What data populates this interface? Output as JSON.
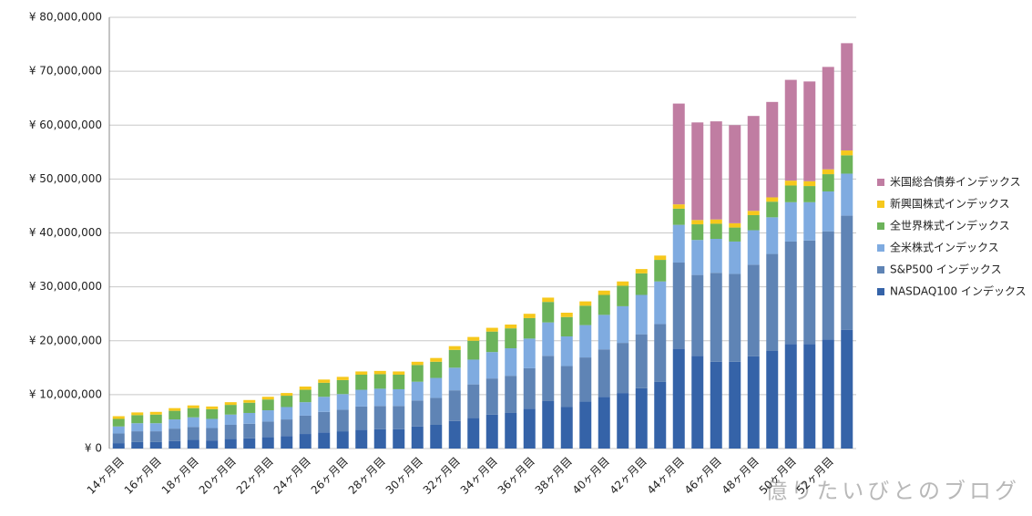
{
  "chart_data": {
    "type": "stacked_bar",
    "categories": [
      "14ヶ月目",
      null,
      "16ヶ月目",
      null,
      "18ヶ月目",
      null,
      "20ヶ月目",
      null,
      "22ヶ月目",
      null,
      "24ヶ月目",
      null,
      "26ヶ月目",
      null,
      "28ヶ月目",
      null,
      "30ヶ月目",
      null,
      "32ヶ月目",
      null,
      "34ヶ月目",
      null,
      "36ヶ月目",
      null,
      "38ヶ月目",
      null,
      "40ヶ月目",
      null,
      "42ヶ月目",
      null,
      "44ヶ月目",
      null,
      "46ヶ月目",
      null,
      "48ヶ月目",
      null,
      "50ヶ月目",
      null,
      "52ヶ月目",
      null
    ],
    "series": [
      {
        "name": "NASDAQ100 インデックス",
        "color": "#3563a8",
        "values": [
          1000000,
          1200000,
          1200000,
          1400000,
          1600000,
          1500000,
          1800000,
          1900000,
          2100000,
          2300000,
          2700000,
          3000000,
          3200000,
          3500000,
          3600000,
          3600000,
          4100000,
          4400000,
          5100000,
          5700000,
          6300000,
          6600000,
          7400000,
          8800000,
          7700000,
          8700000,
          9600000,
          10300000,
          11200000,
          12400000,
          18500000,
          17200000,
          16100000,
          16100000,
          17100000,
          18100000,
          19400000,
          19400000,
          20200000,
          22000000
        ]
      },
      {
        "name": "S&P500 インデックス",
        "color": "#5f84b5",
        "values": [
          1800000,
          2000000,
          2000000,
          2300000,
          2400000,
          2300000,
          2600000,
          2700000,
          2900000,
          3100000,
          3400000,
          3800000,
          4000000,
          4300000,
          4300000,
          4300000,
          4800000,
          5000000,
          5700000,
          6200000,
          6700000,
          6900000,
          7500000,
          8400000,
          7600000,
          8200000,
          8800000,
          9300000,
          10000000,
          10700000,
          16000000,
          15000000,
          16500000,
          16300000,
          17000000,
          18000000,
          19000000,
          19200000,
          20100000,
          21200000
        ]
      },
      {
        "name": "全米株式インデックス",
        "color": "#7fabe0",
        "values": [
          1300000,
          1500000,
          1500000,
          1700000,
          1800000,
          1700000,
          1900000,
          2000000,
          2100000,
          2300000,
          2500000,
          2800000,
          2900000,
          3100000,
          3200000,
          3100000,
          3500000,
          3700000,
          4200000,
          4600000,
          4900000,
          5100000,
          5500000,
          6200000,
          5500000,
          6000000,
          6400000,
          6800000,
          7300000,
          7900000,
          7000000,
          6500000,
          6300000,
          6000000,
          6400000,
          6800000,
          7300000,
          7100000,
          7400000,
          7800000
        ]
      },
      {
        "name": "全世界株式インデックス",
        "color": "#6cb35a",
        "values": [
          1400000,
          1500000,
          1600000,
          1600000,
          1700000,
          1800000,
          1800000,
          1900000,
          2000000,
          2100000,
          2300000,
          2600000,
          2600000,
          2800000,
          2700000,
          2700000,
          3100000,
          3000000,
          3300000,
          3500000,
          3800000,
          3700000,
          3800000,
          3800000,
          3600000,
          3600000,
          3700000,
          3800000,
          4000000,
          4000000,
          3000000,
          2900000,
          2800000,
          2600000,
          2800000,
          2900000,
          3100000,
          3000000,
          3200000,
          3400000
        ]
      },
      {
        "name": "新興国株式インデックス",
        "color": "#f6c81c",
        "values": [
          500000,
          500000,
          500000,
          500000,
          500000,
          500000,
          500000,
          500000,
          500000,
          500000,
          600000,
          600000,
          600000,
          600000,
          600000,
          600000,
          600000,
          700000,
          700000,
          700000,
          700000,
          700000,
          800000,
          800000,
          800000,
          800000,
          800000,
          800000,
          800000,
          800000,
          800000,
          800000,
          800000,
          800000,
          800000,
          800000,
          900000,
          900000,
          900000,
          900000
        ]
      },
      {
        "name": "米国総合債券インデックス",
        "color": "#c07da2",
        "values": [
          null,
          null,
          null,
          null,
          null,
          null,
          null,
          null,
          null,
          null,
          null,
          null,
          null,
          null,
          null,
          null,
          null,
          null,
          null,
          null,
          null,
          null,
          null,
          null,
          null,
          null,
          null,
          null,
          null,
          null,
          18700000,
          18100000,
          18200000,
          18200000,
          17600000,
          17700000,
          18700000,
          18500000,
          19000000,
          19900000
        ]
      }
    ],
    "ylim": [
      0,
      80000000
    ],
    "yticks": [
      {
        "value": 0,
        "label": "¥ 0"
      },
      {
        "value": 10000000,
        "label": "¥ 10,000,000"
      },
      {
        "value": 20000000,
        "label": "¥ 20,000,000"
      },
      {
        "value": 30000000,
        "label": "¥ 30,000,000"
      },
      {
        "value": 40000000,
        "label": "¥ 40,000,000"
      },
      {
        "value": 50000000,
        "label": "¥ 50,000,000"
      },
      {
        "value": 60000000,
        "label": "¥ 60,000,000"
      },
      {
        "value": 70000000,
        "label": "¥ 70,000,000"
      },
      {
        "value": 80000000,
        "label": "¥ 80,000,000"
      }
    ],
    "grid": true,
    "legend": "right",
    "watermark": "億りたいびとのブログ"
  }
}
